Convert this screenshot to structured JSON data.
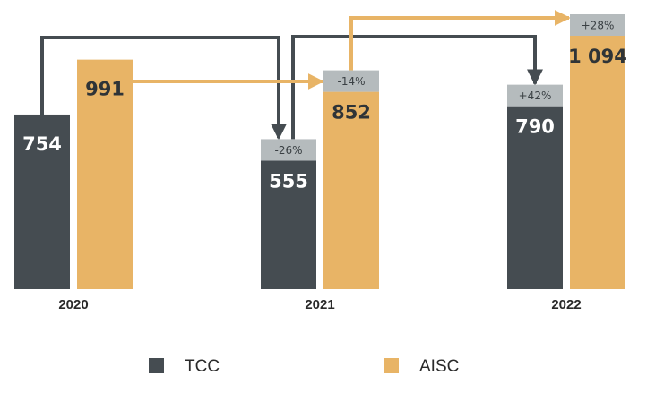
{
  "chart_data": {
    "type": "bar",
    "title": "",
    "xlabel": "",
    "ylabel": "",
    "categories": [
      "2020",
      "2021",
      "2022"
    ],
    "series": [
      {
        "name": "TCC",
        "color": "#454c51",
        "values": [
          754,
          555,
          790
        ],
        "labels": [
          "754",
          "555",
          "790"
        ],
        "changes": [
          "",
          "-26%",
          "+42%"
        ]
      },
      {
        "name": "AISC",
        "color": "#e8b466",
        "values": [
          991,
          852,
          1094
        ],
        "labels": [
          "991",
          "852",
          "1 094"
        ],
        "changes": [
          "",
          "-14%",
          "+28%"
        ]
      }
    ],
    "change_box_color": "#b5bbbd",
    "ylim": [
      0,
      1094
    ],
    "grid": false,
    "legend": "bottom"
  }
}
